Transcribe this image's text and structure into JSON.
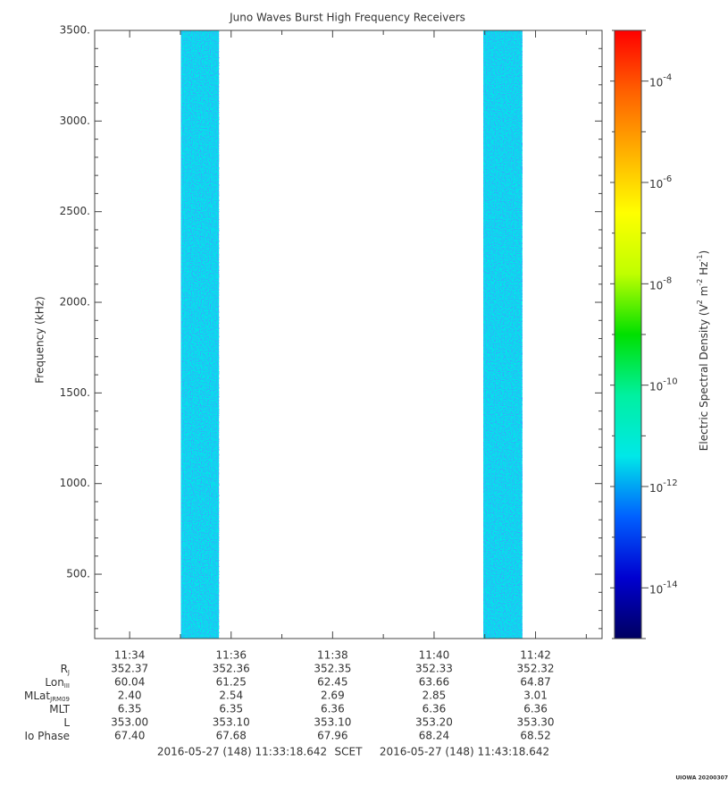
{
  "chart_data": {
    "type": "spectrogram",
    "title": "Juno Waves Burst High Frequency Receivers",
    "ylabel": "Frequency (kHz)",
    "xlim": [
      693.3107,
      703.3107
    ],
    "xticks": [
      {
        "value": 694,
        "label": "11:34"
      },
      {
        "value": 696,
        "label": "11:36"
      },
      {
        "value": 698,
        "label": "11:38"
      },
      {
        "value": 700,
        "label": "11:40"
      },
      {
        "value": 702,
        "label": "11:42"
      }
    ],
    "xminor_ticks": [
      695,
      697,
      699,
      701,
      703
    ],
    "ylim": [
      145,
      3500
    ],
    "yticks": [
      {
        "value": 500,
        "label": "500."
      },
      {
        "value": 1000,
        "label": "1000."
      },
      {
        "value": 1500,
        "label": "1500."
      },
      {
        "value": 2000,
        "label": "2000."
      },
      {
        "value": 2500,
        "label": "2500."
      },
      {
        "value": 3000,
        "label": "3000."
      },
      {
        "value": 3500,
        "label": "3500."
      }
    ],
    "yminor_ticks": [
      200,
      300,
      400,
      600,
      700,
      800,
      900,
      1100,
      1200,
      1300,
      1400,
      1600,
      1700,
      1800,
      1900,
      2100,
      2200,
      2300,
      2400,
      2600,
      2700,
      2800,
      2900,
      3100,
      3200,
      3300,
      3400
    ],
    "bursts": [
      {
        "start": 695.01,
        "end": 695.76,
        "level": 1e-12
      },
      {
        "start": 700.97,
        "end": 701.74,
        "level": 1e-12
      }
    ],
    "zlog": true,
    "zlim": [
      1e-15,
      0.001
    ],
    "zticks": [
      {
        "value": 1e-14,
        "label": "10",
        "exponent": "-14"
      },
      {
        "value": 1e-12,
        "label": "10",
        "exponent": "-12"
      },
      {
        "value": 1e-10,
        "label": "10",
        "exponent": "-10"
      },
      {
        "value": 1e-08,
        "label": "10",
        "exponent": "-8"
      },
      {
        "value": 1e-06,
        "label": "10",
        "exponent": "-6"
      },
      {
        "value": 0.0001,
        "label": "10",
        "exponent": "-4"
      }
    ],
    "zminor_ticks": [
      1e-15,
      1e-13,
      1e-11,
      1e-09,
      1e-07,
      1e-05,
      0.001
    ],
    "zlabel": {
      "parts": [
        "Electric Spectral Density (V",
        "2",
        " m",
        "-2",
        " Hz",
        "-1",
        ")"
      ]
    },
    "colormap": [
      "#000060",
      "#0000d0",
      "#0060ff",
      "#00e8e8",
      "#00f0a0",
      "#00e000",
      "#c0ff00",
      "#ffff00",
      "#ffb000",
      "#ff6000",
      "#ff0000"
    ],
    "ephemeris": [
      {
        "label": "R",
        "sub": "J",
        "values": [
          "352.37",
          "352.36",
          "352.35",
          "352.33",
          "352.32"
        ]
      },
      {
        "label": "Lon",
        "sub": "III",
        "values": [
          "60.04",
          "61.25",
          "62.45",
          "63.66",
          "64.87"
        ]
      },
      {
        "label": "MLat",
        "sub": "JRM09",
        "values": [
          "2.40",
          "2.54",
          "2.69",
          "2.85",
          "3.01"
        ]
      },
      {
        "label": "MLT",
        "values": [
          "6.35",
          "6.35",
          "6.36",
          "6.36",
          "6.36"
        ]
      },
      {
        "label": "L",
        "values": [
          "353.00",
          "353.10",
          "353.10",
          "353.20",
          "353.30"
        ]
      },
      {
        "label": "Io Phase",
        "values": [
          "67.40",
          "67.68",
          "67.96",
          "68.24",
          "68.52"
        ]
      }
    ],
    "start_time": "2016-05-27 (148) 11:33:18.642",
    "time_system": "SCET",
    "end_time": "2016-05-27 (148) 11:43:18.642",
    "credit": "UIOWA 20200307"
  }
}
